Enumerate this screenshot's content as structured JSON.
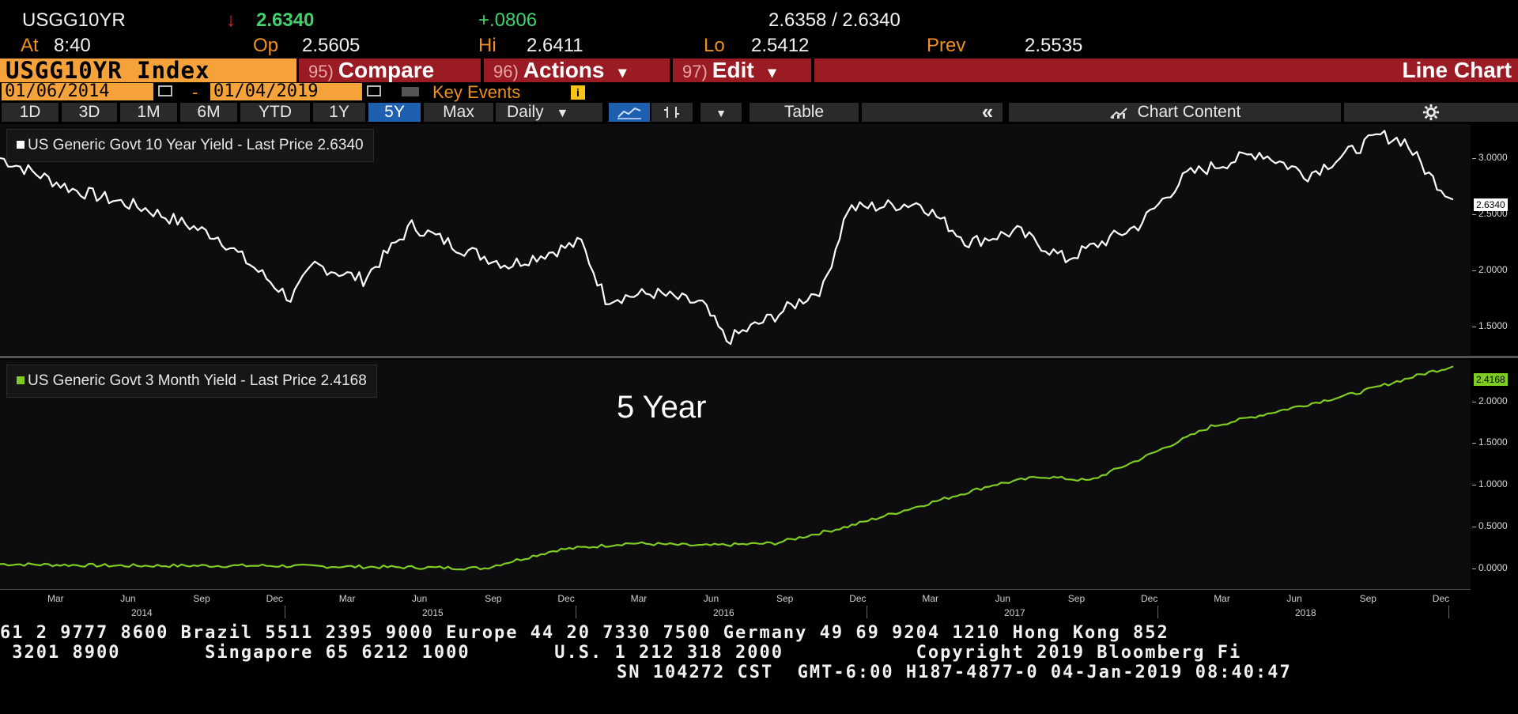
{
  "header": {
    "ticker": "USGG10YR",
    "arrow": "↓",
    "last": "2.6340",
    "change": "+.0806",
    "bid_ask": "2.6358 / 2.6340",
    "at_label": "At",
    "time": "8:40",
    "op_label": "Op",
    "op_value": "2.5605",
    "hi_label": "Hi",
    "hi_value": "2.6411",
    "lo_label": "Lo",
    "lo_value": "2.5412",
    "prev_label": "Prev",
    "prev_value": "2.5535"
  },
  "menu": {
    "index": "USGG10YR Index",
    "compare_num": "95)",
    "compare": "Compare",
    "actions_num": "96)",
    "actions": "Actions",
    "actions_arrow": "▾",
    "edit_num": "97)",
    "edit": "Edit",
    "edit_arrow": "▾",
    "chart_type": "Line Chart"
  },
  "dates": {
    "start": "01/06/2014",
    "sep": "-",
    "end": "01/04/2019",
    "key_events": "Key Events",
    "info": "i"
  },
  "toolbar": {
    "periods": [
      "1D",
      "3D",
      "1M",
      "6M",
      "YTD",
      "1Y",
      "5Y",
      "Max"
    ],
    "selected": "5Y",
    "frequency": "Daily",
    "dropdown": "▼",
    "table": "Table",
    "collapse": "«",
    "chart_content": "Chart Content"
  },
  "panel1": {
    "legend": "US Generic Govt 10 Year Yield - Last Price 2.6340",
    "ticks": [
      "3.0000",
      "2.5000",
      "2.0000",
      "1.5000"
    ],
    "last_tag": "2.6340",
    "color": "#ffffff"
  },
  "panel2": {
    "legend": "US Generic Govt 3 Month Yield - Last Price 2.4168",
    "annotation": "5 Year",
    "ticks": [
      "2.0000",
      "1.5000",
      "1.0000",
      "0.5000",
      "0.0000"
    ],
    "last_tag": "2.4168",
    "color": "#7ecb22"
  },
  "xaxis": {
    "months": [
      "Mar",
      "Jun",
      "Sep",
      "Dec",
      "Mar",
      "Jun",
      "Sep",
      "Dec",
      "Mar",
      "Jun",
      "Sep",
      "Dec",
      "Mar",
      "Jun",
      "Sep",
      "Dec",
      "Mar",
      "Jun",
      "Sep",
      "Dec"
    ],
    "years": [
      "2014",
      "2015",
      "2016",
      "2017",
      "2018"
    ]
  },
  "footer": {
    "line1": "61 2 9777 8600 Brazil 5511 2395 9000 Europe 44 20 7330 7500 Germany 49 69 9204 1210 Hong Kong 852",
    "line2": " 3201 8900       Singapore 65 6212 1000       U.S. 1 212 318 2000           Copyright 2019 Bloomberg Fi",
    "line3": "SN 104272 CST  GMT-6:00 H187-4877-0 04-Jan-2019 08:40:47"
  },
  "chart_data": [
    {
      "type": "line",
      "series": [
        {
          "name": "US Generic Govt 10 Year Yield - Last Price 2.6340",
          "x": [
            "2014-01",
            "2014-04",
            "2014-07",
            "2014-10",
            "2015-01",
            "2015-02",
            "2015-04",
            "2015-06",
            "2015-08",
            "2015-10",
            "2016-01",
            "2016-02",
            "2016-04",
            "2016-06",
            "2016-07",
            "2016-09",
            "2016-11",
            "2016-12",
            "2017-03",
            "2017-05",
            "2017-07",
            "2017-09",
            "2017-12",
            "2018-02",
            "2018-05",
            "2018-07",
            "2018-10",
            "2018-11",
            "2018-12",
            "2019-01"
          ],
          "values": [
            3.0,
            2.72,
            2.55,
            2.3,
            1.75,
            2.05,
            1.92,
            2.4,
            2.2,
            2.05,
            2.25,
            1.75,
            1.8,
            1.7,
            1.38,
            1.6,
            1.85,
            2.55,
            2.6,
            2.25,
            2.35,
            2.1,
            2.4,
            2.85,
            3.05,
            2.85,
            3.2,
            3.15,
            2.85,
            2.63
          ]
        }
      ],
      "ylim": [
        1.25,
        3.3
      ]
    },
    {
      "type": "line",
      "series": [
        {
          "name": "US Generic Govt 3 Month Yield - Last Price 2.4168",
          "x": [
            "2014-01",
            "2014-06",
            "2014-12",
            "2015-06",
            "2015-09",
            "2015-12",
            "2016-03",
            "2016-06",
            "2016-09",
            "2016-12",
            "2017-03",
            "2017-06",
            "2017-08",
            "2017-10",
            "2017-12",
            "2018-03",
            "2018-06",
            "2018-09",
            "2018-12",
            "2019-01"
          ],
          "values": [
            0.05,
            0.03,
            0.03,
            0.01,
            0.0,
            0.22,
            0.3,
            0.27,
            0.3,
            0.5,
            0.75,
            1.0,
            1.1,
            1.05,
            1.3,
            1.7,
            1.9,
            2.1,
            2.35,
            2.42
          ]
        }
      ],
      "ylim": [
        -0.25,
        2.5
      ]
    }
  ]
}
